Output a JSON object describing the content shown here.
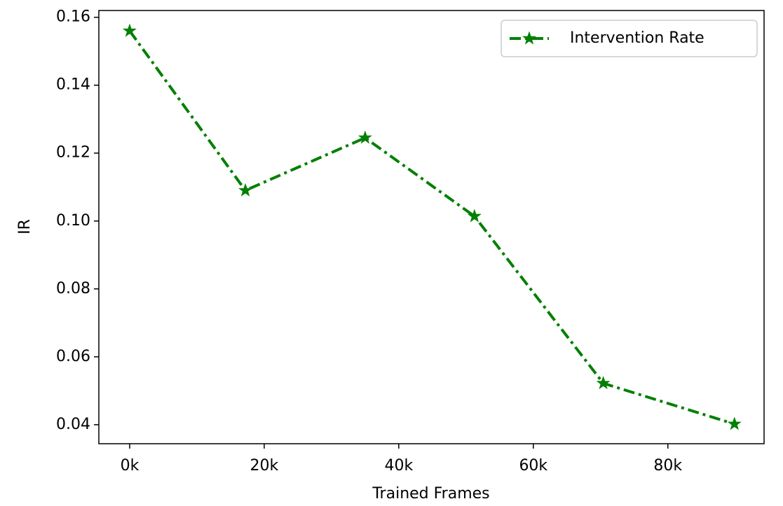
{
  "chart_data": {
    "type": "line",
    "x_label": "Trained Frames",
    "y_label": "IR",
    "x": [
      0,
      17200,
      35000,
      51250,
      70400,
      89900
    ],
    "series": [
      {
        "name": "Intervention Rate",
        "color": "#008000",
        "values": [
          0.156,
          0.109,
          0.1245,
          0.1014,
          0.0522,
          0.0402
        ]
      }
    ],
    "xlim": [
      -4580,
      94300
    ],
    "ylim": [
      0.0344,
      0.162
    ],
    "xticks": [
      {
        "value": 0,
        "label": "0k"
      },
      {
        "value": 20000,
        "label": "20k"
      },
      {
        "value": 40000,
        "label": "40k"
      },
      {
        "value": 60000,
        "label": "60k"
      },
      {
        "value": 80000,
        "label": "80k"
      }
    ],
    "yticks": [
      0.04,
      0.06,
      0.08,
      {
        "value": 0.1,
        "label": "0.10"
      },
      0.12,
      0.14,
      0.16
    ],
    "legend": "upper right",
    "grid": false
  }
}
